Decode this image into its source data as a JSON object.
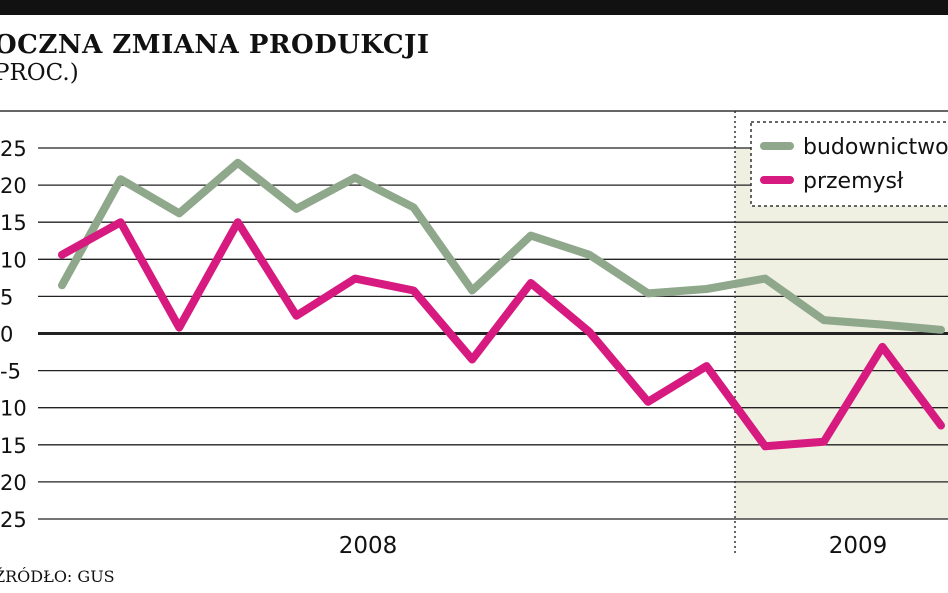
{
  "title": "OCZNA ZMIANA PRODUKCJI",
  "unit": "PROC.)",
  "source": "ŹRÓDŁO: GUS",
  "chart_data": {
    "type": "line",
    "y_ticks": [
      "25",
      "20",
      "15",
      "10",
      "5",
      "0",
      "-5",
      "10",
      "15",
      "20",
      "25"
    ],
    "y_tick_values": [
      25,
      20,
      15,
      10,
      5,
      0,
      -5,
      -10,
      -15,
      -20,
      -25
    ],
    "ylim": [
      -25,
      25
    ],
    "x_labels": [
      "2008",
      "2009"
    ],
    "grid": true,
    "legend_position": "top-right",
    "shaded_region_label": "2009",
    "series": [
      {
        "name": "budownictwo",
        "color": "#8fa88c",
        "values": [
          6.5,
          20.8,
          16.2,
          23.0,
          16.8,
          21.0,
          17.0,
          5.8,
          13.2,
          10.6,
          5.4,
          6.0,
          7.4,
          1.8,
          1.2,
          0.5
        ]
      },
      {
        "name": "przemysł",
        "color": "#d61a7f",
        "values": [
          10.6,
          15.0,
          0.8,
          15.0,
          2.4,
          7.4,
          5.8,
          -3.5,
          6.8,
          0.2,
          -9.2,
          -4.4,
          -15.2,
          -14.6,
          -1.8,
          -12.4
        ]
      }
    ]
  }
}
